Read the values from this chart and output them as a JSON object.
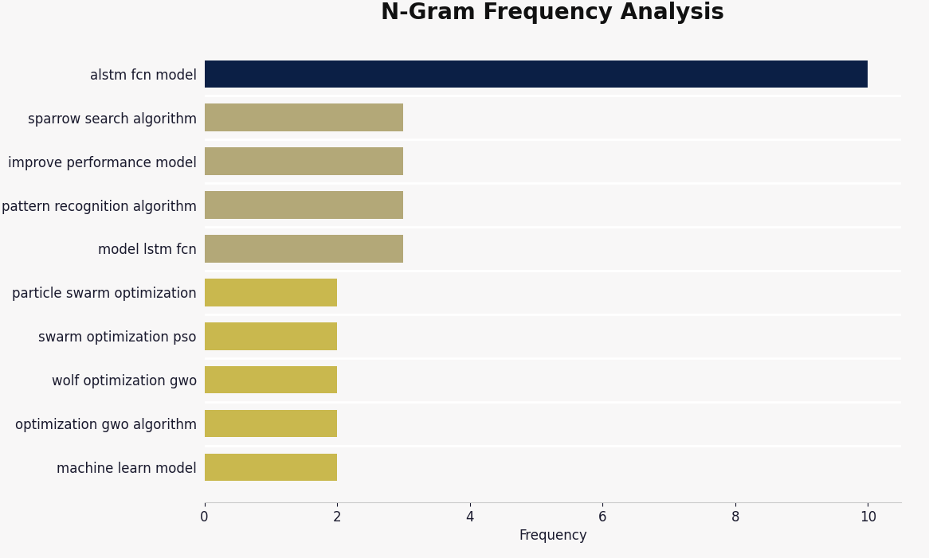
{
  "title": "N-Gram Frequency Analysis",
  "categories": [
    "machine learn model",
    "optimization gwo algorithm",
    "wolf optimization gwo",
    "swarm optimization pso",
    "particle swarm optimization",
    "model lstm fcn",
    "pattern recognition algorithm",
    "improve performance model",
    "sparrow search algorithm",
    "alstm fcn model"
  ],
  "values": [
    2,
    2,
    2,
    2,
    2,
    3,
    3,
    3,
    3,
    10
  ],
  "bar_colors": [
    "#c9b84e",
    "#c9b84e",
    "#c9b84e",
    "#c9b84e",
    "#c9b84e",
    "#b3a878",
    "#b3a878",
    "#b3a878",
    "#b3a878",
    "#0b1f45"
  ],
  "background_color": "#f8f7f7",
  "xlabel": "Frequency",
  "xlim": [
    0,
    10.5
  ],
  "xticks": [
    0,
    2,
    4,
    6,
    8,
    10
  ],
  "title_fontsize": 20,
  "label_fontsize": 12,
  "tick_fontsize": 12,
  "label_color": "#1a1a2e",
  "bar_height": 0.62
}
